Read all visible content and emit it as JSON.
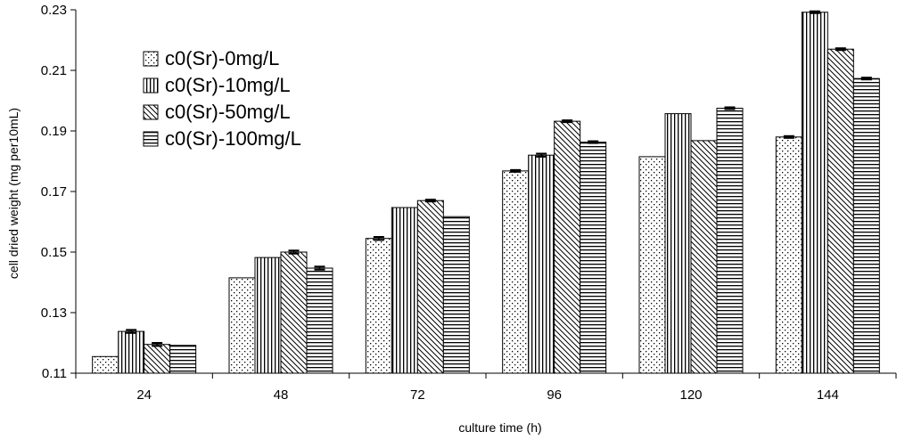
{
  "chart_data": {
    "type": "bar",
    "title": "",
    "xlabel": "culture time (h)",
    "ylabel": "cell dried weight (mg per10mL)",
    "ylim": [
      0.11,
      0.23
    ],
    "yticks": [
      "0.11",
      "0.13",
      "0.15",
      "0.17",
      "0.19",
      "0.21",
      "0.23"
    ],
    "categories": [
      "24",
      "48",
      "72",
      "96",
      "120",
      "144"
    ],
    "legend_position": "top-left",
    "grid": false,
    "series": [
      {
        "name": "c0(Sr)-0mg/L",
        "pattern": "dots",
        "values": [
          0.1155,
          0.1415,
          0.1545,
          0.1768,
          0.1815,
          0.188
        ],
        "errors": [
          0,
          0,
          0.0005,
          0.0003,
          0,
          0.0003
        ]
      },
      {
        "name": "c0(Sr)-10mg/L",
        "pattern": "vertical-lines",
        "values": [
          0.1238,
          0.1482,
          0.1647,
          0.182,
          0.1957,
          0.2292
        ],
        "errors": [
          0.0005,
          0,
          0,
          0.0005,
          0,
          0.0003
        ]
      },
      {
        "name": "c0(Sr)-50mg/L",
        "pattern": "diagonal-lines",
        "values": [
          0.1195,
          0.15,
          0.167,
          0.1932,
          0.1868,
          0.217
        ],
        "errors": [
          0.0005,
          0.0005,
          0.0003,
          0.0003,
          0,
          0.0003
        ]
      },
      {
        "name": "c0(Sr)-100mg/L",
        "pattern": "horizontal-lines",
        "values": [
          0.1192,
          0.1447,
          0.1617,
          0.1863,
          0.1975,
          0.2073
        ],
        "errors": [
          0,
          0.0005,
          0,
          0.0003,
          0.0003,
          0.0003
        ]
      }
    ]
  }
}
